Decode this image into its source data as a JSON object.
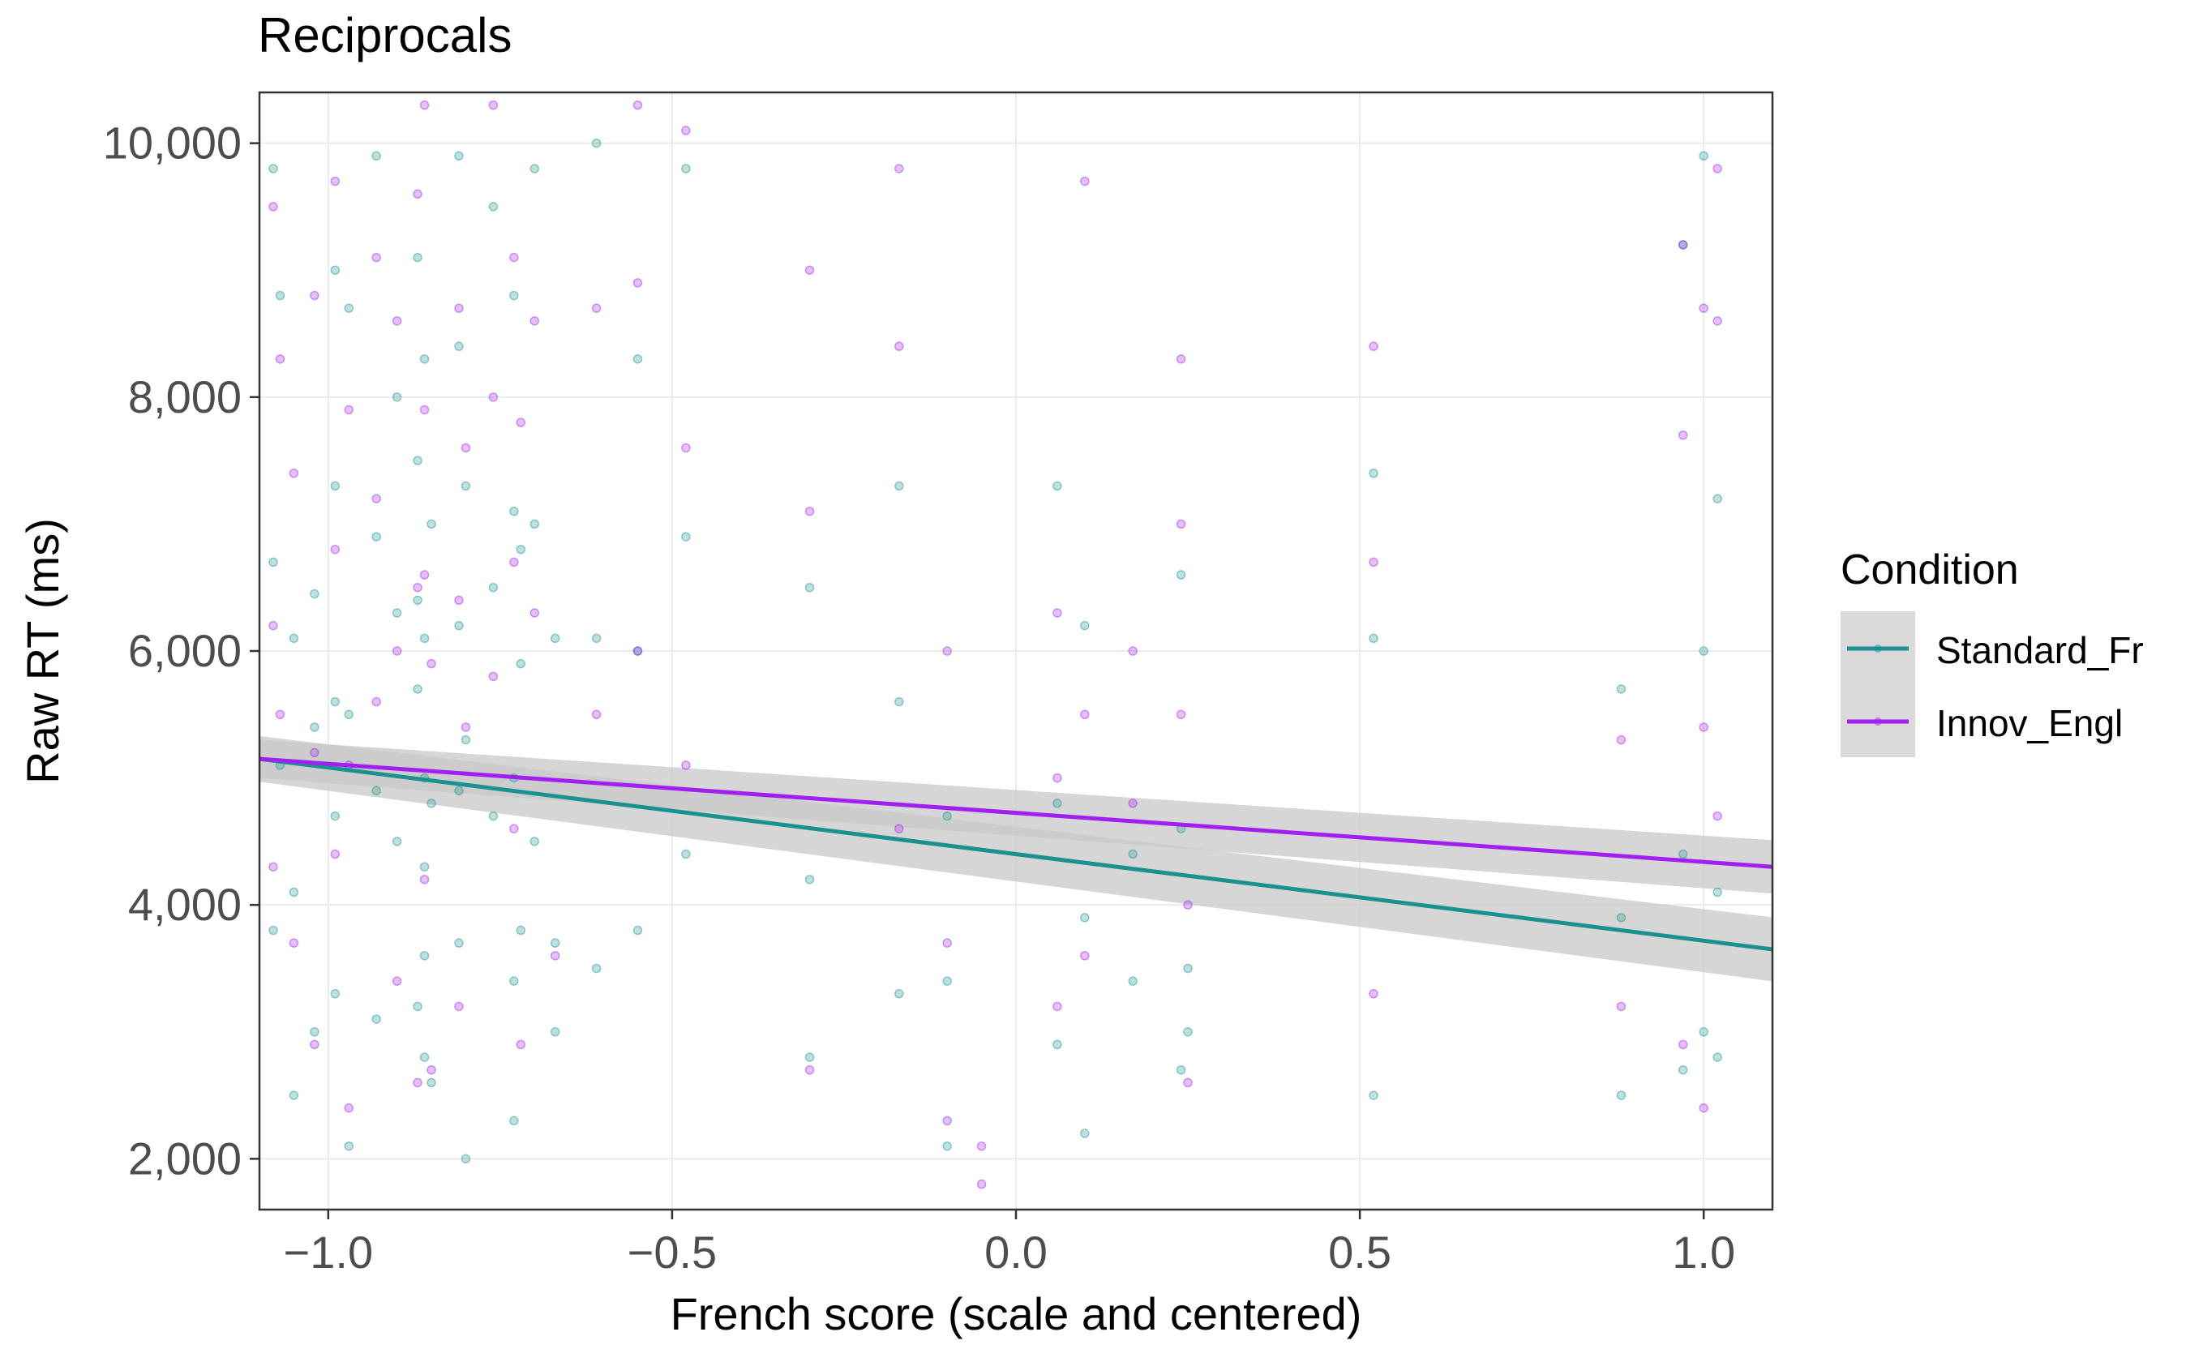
{
  "chart_data": {
    "type": "scatter",
    "title": "Reciprocals",
    "xlabel": "French score (scale and centered)",
    "ylabel": "Raw RT (ms)",
    "xlim": [
      -1.1,
      1.1
    ],
    "ylim": [
      1600,
      10400
    ],
    "x_ticks": [
      -1.0,
      -0.5,
      0.0,
      0.5,
      1.0
    ],
    "x_tick_labels": [
      "−1.0",
      "−0.5",
      "0.0",
      "0.5",
      "1.0"
    ],
    "y_ticks": [
      2000,
      4000,
      6000,
      8000,
      10000
    ],
    "y_tick_labels": [
      "2,000",
      "4,000",
      "6,000",
      "8,000",
      "10,000"
    ],
    "grid": true,
    "legend": {
      "title": "Condition",
      "position": "right",
      "entries": [
        "Standard_Fr",
        "Innov_Engl"
      ]
    },
    "colors": {
      "Standard_Fr": "#1a9090",
      "Innov_Engl": "#a020f0",
      "ribbon": "#c8c8c8"
    },
    "x_positions": [
      -1.08,
      -1.07,
      -1.05,
      -1.02,
      -0.99,
      -0.97,
      -0.93,
      -0.9,
      -0.87,
      -0.86,
      -0.85,
      -0.81,
      -0.8,
      -0.76,
      -0.73,
      -0.72,
      -0.7,
      -0.67,
      -0.61,
      -0.55,
      -0.48,
      -0.3,
      -0.17,
      -0.1,
      -0.05,
      0.06,
      0.1,
      0.17,
      0.24,
      0.25,
      0.52,
      0.88,
      0.97,
      1.0,
      1.02
    ],
    "series": [
      {
        "name": "Standard_Fr",
        "fit": {
          "x": [
            -1.1,
            1.1
          ],
          "y": [
            5150,
            3650
          ],
          "ci_halfwidth": 180
        },
        "points": {
          "x": [
            -1.08,
            -1.08,
            -1.08,
            -1.07,
            -1.07,
            -1.05,
            -1.05,
            -1.05,
            -1.02,
            -1.02,
            -1.02,
            -0.99,
            -0.99,
            -0.99,
            -0.99,
            -0.99,
            -0.97,
            -0.97,
            -0.97,
            -0.93,
            -0.93,
            -0.93,
            -0.93,
            -0.9,
            -0.9,
            -0.9,
            -0.87,
            -0.87,
            -0.87,
            -0.87,
            -0.87,
            -0.86,
            -0.86,
            -0.86,
            -0.86,
            -0.86,
            -0.86,
            -0.85,
            -0.85,
            -0.85,
            -0.81,
            -0.81,
            -0.81,
            -0.81,
            -0.81,
            -0.8,
            -0.8,
            -0.8,
            -0.76,
            -0.76,
            -0.76,
            -0.73,
            -0.73,
            -0.73,
            -0.73,
            -0.73,
            -0.72,
            -0.72,
            -0.72,
            -0.7,
            -0.7,
            -0.7,
            -0.67,
            -0.67,
            -0.67,
            -0.61,
            -0.61,
            -0.61,
            -0.55,
            -0.55,
            -0.55,
            -0.48,
            -0.48,
            -0.48,
            -0.3,
            -0.3,
            -0.3,
            -0.17,
            -0.17,
            -0.17,
            -0.1,
            -0.1,
            -0.1,
            0.06,
            0.06,
            0.06,
            0.1,
            0.1,
            0.1,
            0.17,
            0.17,
            0.24,
            0.24,
            0.24,
            0.25,
            0.25,
            0.52,
            0.52,
            0.52,
            0.88,
            0.88,
            0.88,
            0.97,
            0.97,
            0.97,
            1.0,
            1.0,
            1.0,
            1.02,
            1.02,
            1.02
          ],
          "y": [
            9800,
            6700,
            3800,
            8800,
            5100,
            6100,
            4100,
            2500,
            6450,
            5400,
            3000,
            9000,
            7300,
            5600,
            4700,
            3300,
            8700,
            5500,
            2100,
            9900,
            6900,
            4900,
            3100,
            8000,
            6300,
            4500,
            9100,
            7500,
            6400,
            5700,
            3200,
            8300,
            6100,
            5000,
            4300,
            3600,
            2800,
            7000,
            4800,
            2600,
            9900,
            8400,
            6200,
            4900,
            3700,
            7300,
            5300,
            2000,
            9500,
            6500,
            4700,
            8800,
            7100,
            5000,
            3400,
            2300,
            6800,
            5900,
            3800,
            9800,
            7000,
            4500,
            6100,
            3700,
            3000,
            10000,
            6100,
            3500,
            8300,
            6000,
            3800,
            9800,
            6900,
            4400,
            6500,
            4200,
            2800,
            7300,
            5600,
            3300,
            4700,
            3400,
            2100,
            7300,
            4800,
            2900,
            6200,
            3900,
            2200,
            4400,
            3400,
            6600,
            4600,
            2700,
            3500,
            3000,
            7400,
            6100,
            2500,
            5700,
            3900,
            2500,
            9200,
            4400,
            2700,
            9900,
            6000,
            3000,
            7200,
            4100,
            2800
          ]
        }
      },
      {
        "name": "Innov_Engl",
        "fit": {
          "x": [
            -1.1,
            1.1
          ],
          "y": [
            5150,
            4300
          ],
          "ci_halfwidth": 150
        },
        "points": {
          "x": [
            -1.08,
            -1.08,
            -1.08,
            -1.07,
            -1.07,
            -1.05,
            -1.05,
            -1.02,
            -1.02,
            -1.02,
            -0.99,
            -0.99,
            -0.99,
            -0.97,
            -0.97,
            -0.97,
            -0.93,
            -0.93,
            -0.93,
            -0.9,
            -0.9,
            -0.9,
            -0.87,
            -0.87,
            -0.87,
            -0.86,
            -0.86,
            -0.86,
            -0.86,
            -0.85,
            -0.85,
            -0.81,
            -0.81,
            -0.81,
            -0.8,
            -0.8,
            -0.76,
            -0.76,
            -0.76,
            -0.73,
            -0.73,
            -0.73,
            -0.72,
            -0.72,
            -0.7,
            -0.7,
            -0.67,
            -0.61,
            -0.61,
            -0.55,
            -0.55,
            -0.55,
            -0.48,
            -0.48,
            -0.48,
            -0.3,
            -0.3,
            -0.3,
            -0.17,
            -0.17,
            -0.17,
            -0.1,
            -0.1,
            -0.1,
            -0.05,
            -0.05,
            0.06,
            0.06,
            0.06,
            0.1,
            0.1,
            0.1,
            0.17,
            0.17,
            0.24,
            0.24,
            0.24,
            0.25,
            0.25,
            0.52,
            0.52,
            0.52,
            0.88,
            0.88,
            0.97,
            0.97,
            0.97,
            1.0,
            1.0,
            1.0,
            1.02,
            1.02,
            1.02
          ],
          "y": [
            9500,
            6200,
            4300,
            8300,
            5500,
            7400,
            3700,
            8800,
            5200,
            2900,
            9700,
            6800,
            4400,
            7900,
            5100,
            2400,
            9100,
            7200,
            5600,
            8600,
            6000,
            3400,
            9600,
            6500,
            2600,
            10300,
            7900,
            6600,
            4200,
            5900,
            2700,
            8700,
            6400,
            3200,
            7600,
            5400,
            10300,
            8000,
            5800,
            9100,
            6700,
            4600,
            7800,
            2900,
            8600,
            6300,
            3600,
            8700,
            5500,
            10300,
            8900,
            6000,
            10100,
            7600,
            5100,
            9000,
            7100,
            2700,
            9800,
            8400,
            4600,
            6000,
            3700,
            2300,
            2100,
            1800,
            6300,
            5000,
            3200,
            9700,
            5500,
            3600,
            6000,
            4800,
            8300,
            7000,
            5500,
            4000,
            2600,
            8400,
            6700,
            3300,
            5300,
            3200,
            9200,
            7700,
            2900,
            8700,
            5400,
            2400,
            9800,
            8600,
            4700
          ]
        }
      }
    ]
  }
}
